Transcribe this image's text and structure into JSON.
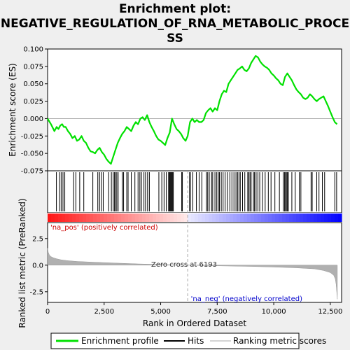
{
  "title_lines": [
    "Enrichment plot:",
    "NEGATIVE_REGULATION_OF_RNA_METABOLIC_PROCE",
    "SS"
  ],
  "colors": {
    "profile": "#00e000",
    "hits": "#000000",
    "metric_fill": "#b0b0b0",
    "pos_label": "#cc0000",
    "neg_label": "#0000cc",
    "zero_line": "#aaaaaa"
  },
  "chart_data": [
    {
      "type": "line",
      "panel": "enrichment",
      "ylabel": "Enrichment score (ES)",
      "ylim": [
        -0.075,
        0.1
      ],
      "yticks": [
        0.1,
        0.075,
        0.05,
        0.025,
        0.0,
        -0.025,
        -0.05,
        -0.075
      ],
      "ytick_labels": [
        "0.100",
        "0.075",
        "0.050",
        "0.025",
        "0.000",
        "-0.025",
        "-0.050",
        "-0.075"
      ],
      "xlim": [
        0,
        13000
      ],
      "series": [
        {
          "name": "Enrichment profile",
          "x": [
            0,
            150,
            300,
            400,
            480,
            560,
            640,
            720,
            800,
            900,
            1000,
            1100,
            1200,
            1300,
            1400,
            1500,
            1600,
            1700,
            1800,
            1900,
            2000,
            2100,
            2200,
            2300,
            2400,
            2500,
            2600,
            2700,
            2800,
            2900,
            3000,
            3100,
            3200,
            3300,
            3400,
            3500,
            3600,
            3700,
            3800,
            3900,
            4000,
            4100,
            4200,
            4300,
            4400,
            4500,
            4600,
            4700,
            4800,
            4900,
            5000,
            5100,
            5200,
            5300,
            5400,
            5500,
            5600,
            5700,
            5800,
            5900,
            6000,
            6100,
            6193,
            6300,
            6400,
            6500,
            6600,
            6700,
            6800,
            6900,
            7000,
            7100,
            7200,
            7300,
            7400,
            7500,
            7600,
            7700,
            7800,
            7900,
            8000,
            8100,
            8200,
            8300,
            8400,
            8500,
            8600,
            8700,
            8800,
            8900,
            9000,
            9100,
            9200,
            9300,
            9400,
            9500,
            9600,
            9700,
            9800,
            9900,
            10000,
            10100,
            10200,
            10300,
            10400,
            10500,
            10600,
            10700,
            10800,
            10900,
            11000,
            11100,
            11200,
            11300,
            11400,
            11500,
            11600,
            11700,
            11800,
            11900,
            12000,
            12100,
            12200,
            12300,
            12400,
            12500,
            12600,
            12700,
            12800
          ],
          "y": [
            0.0,
            -0.008,
            -0.018,
            -0.012,
            -0.015,
            -0.01,
            -0.008,
            -0.012,
            -0.012,
            -0.018,
            -0.022,
            -0.028,
            -0.025,
            -0.032,
            -0.03,
            -0.025,
            -0.032,
            -0.035,
            -0.042,
            -0.047,
            -0.048,
            -0.05,
            -0.045,
            -0.042,
            -0.048,
            -0.052,
            -0.058,
            -0.062,
            -0.065,
            -0.055,
            -0.045,
            -0.035,
            -0.028,
            -0.022,
            -0.018,
            -0.012,
            -0.015,
            -0.018,
            -0.01,
            -0.005,
            -0.008,
            0.0,
            0.002,
            -0.002,
            0.005,
            -0.005,
            -0.012,
            -0.018,
            -0.025,
            -0.03,
            -0.032,
            -0.035,
            -0.038,
            -0.028,
            -0.02,
            0.0,
            -0.008,
            -0.015,
            -0.018,
            -0.022,
            -0.028,
            -0.032,
            -0.025,
            -0.005,
            0.0,
            -0.005,
            -0.002,
            -0.005,
            -0.005,
            -0.002,
            0.008,
            0.012,
            0.015,
            0.01,
            0.015,
            0.012,
            0.025,
            0.035,
            0.04,
            0.038,
            0.05,
            0.055,
            0.06,
            0.065,
            0.07,
            0.072,
            0.075,
            0.07,
            0.068,
            0.072,
            0.08,
            0.085,
            0.09,
            0.088,
            0.082,
            0.078,
            0.075,
            0.073,
            0.07,
            0.065,
            0.062,
            0.058,
            0.055,
            0.05,
            0.048,
            0.06,
            0.065,
            0.06,
            0.055,
            0.048,
            0.042,
            0.038,
            0.035,
            0.03,
            0.028,
            0.03,
            0.035,
            0.032,
            0.028,
            0.025,
            0.028,
            0.03,
            0.032,
            0.025,
            0.018,
            0.01,
            0.002,
            -0.005,
            -0.008
          ]
        }
      ]
    },
    {
      "type": "scatter",
      "panel": "hits",
      "series": [
        {
          "name": "Hits",
          "x": [
            390,
            530,
            600,
            680,
            760,
            1150,
            1250,
            1420,
            1600,
            2000,
            2220,
            2300,
            2380,
            2460,
            2700,
            2820,
            2900,
            2960,
            3000,
            3060,
            3120,
            3300,
            3360,
            3500,
            3560,
            3700,
            3860,
            4000,
            4080,
            4150,
            4260,
            4330,
            4420,
            4500,
            4920,
            5050,
            5150,
            5250,
            5350,
            5380,
            5410,
            5440,
            5470,
            5500,
            5530,
            5560,
            5930,
            5960,
            6280,
            6310,
            6420,
            6580,
            6700,
            6820,
            7020,
            7080,
            7150,
            7250,
            7300,
            7400,
            7480,
            7550,
            7600,
            7680,
            7760,
            7850,
            7950,
            8060,
            8150,
            8240,
            8330,
            8400,
            8460,
            8520,
            8620,
            8720,
            8850,
            8900,
            8950,
            9000,
            9100,
            9150,
            9220,
            9300,
            9380,
            9500,
            9620,
            9760,
            9880,
            10050,
            10250,
            10420,
            10480,
            10520,
            10560,
            10600,
            10650,
            10800,
            10950,
            11130,
            11200,
            11650,
            11700,
            11900,
            12000,
            12150,
            12250,
            12700,
            12780
          ]
        }
      ]
    },
    {
      "type": "area",
      "panel": "ranked_metric",
      "ylabel": "Ranked list metric (PreRanked)",
      "xlabel": "Rank in Ordered Dataset",
      "ylim": [
        -3.5,
        4.0
      ],
      "yticks": [
        2.5,
        0.0,
        -2.5
      ],
      "ytick_labels": [
        "2.5",
        "0.0",
        "-2.5"
      ],
      "xlim": [
        0,
        13000
      ],
      "xticks": [
        0,
        2500,
        5000,
        7500,
        10000,
        12500
      ],
      "xtick_labels": [
        "0",
        "2,500",
        "5,000",
        "7,500",
        "10,000",
        "12,500"
      ],
      "series": [
        {
          "name": "Ranking metric scores",
          "x": [
            0,
            30,
            80,
            150,
            250,
            400,
            600,
            900,
            1300,
            2000,
            3000,
            4000,
            5000,
            6193,
            7000,
            8000,
            9000,
            10000,
            11000,
            11800,
            12200,
            12500,
            12650,
            12720,
            12760,
            12790,
            12810
          ],
          "y": [
            1.6,
            1.2,
            0.95,
            0.8,
            0.7,
            0.6,
            0.5,
            0.42,
            0.35,
            0.28,
            0.2,
            0.12,
            0.06,
            0.0,
            -0.04,
            -0.08,
            -0.12,
            -0.18,
            -0.25,
            -0.35,
            -0.5,
            -0.7,
            -0.95,
            -1.3,
            -1.8,
            -2.6,
            -3.2
          ]
        }
      ],
      "zero_cross_rank": 6193,
      "annotations": {
        "zero_cross": "Zero cross at 6193",
        "pos": "'na_pos' (positively correlated)",
        "neg": "'na_neg' (negatively correlated)"
      }
    }
  ],
  "legend": {
    "items": [
      {
        "label": "Enrichment profile",
        "swatch": "line-green"
      },
      {
        "label": "Hits",
        "swatch": "line-black"
      },
      {
        "label": "Ranking metric scores",
        "swatch": "line-gray"
      }
    ]
  }
}
